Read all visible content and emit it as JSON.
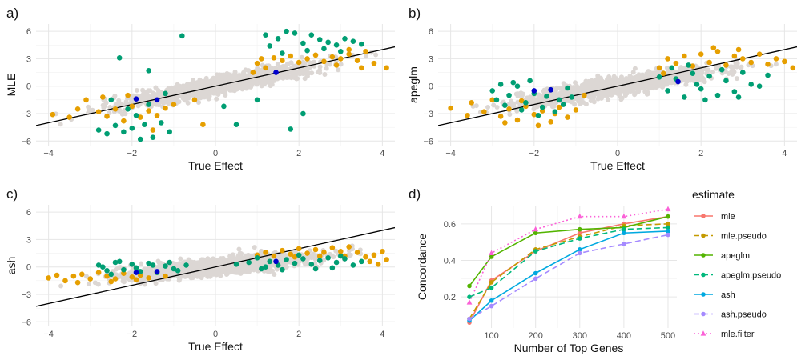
{
  "colors": {
    "background_points": "#dcd7d4",
    "orange": "#e69f00",
    "green": "#009e73",
    "blue": "#0000cc",
    "line": "#000000",
    "grid_major": "#e6e6e6",
    "grid_minor": "#f2f2f2"
  },
  "chart_data": [
    {
      "type": "scatter",
      "panel": "a)",
      "xlabel": "True Effect",
      "ylabel": "MLE",
      "xlim": [
        -4.3,
        4.3
      ],
      "ylim": [
        -6.5,
        6.8
      ],
      "xticks": [
        -4,
        -2,
        0,
        2,
        4
      ],
      "yticks": [
        -6,
        -3,
        0,
        3,
        6
      ],
      "grid": true,
      "line": {
        "intercept": 0,
        "slope": 1
      },
      "green_points": [
        [
          -2.8,
          -4.8
        ],
        [
          -2.6,
          -5.2
        ],
        [
          -2.4,
          -4.3
        ],
        [
          -2.2,
          -5.0
        ],
        [
          -2.0,
          -4.6
        ],
        [
          -1.8,
          -5.8
        ],
        [
          -1.7,
          -4.2
        ],
        [
          -1.5,
          -5.6
        ],
        [
          -1.3,
          -4.0
        ],
        [
          -1.1,
          -5.0
        ],
        [
          -2.5,
          -1.5
        ],
        [
          -2.1,
          -2.5
        ],
        [
          -1.9,
          -3.2
        ],
        [
          -1.6,
          -2.0
        ],
        [
          -2.3,
          3.1
        ],
        [
          -1.6,
          1.7
        ],
        [
          -1.2,
          -0.8
        ],
        [
          -0.8,
          5.5
        ],
        [
          0.2,
          -2.2
        ],
        [
          0.5,
          -4.2
        ],
        [
          1.0,
          -1.5
        ],
        [
          1.8,
          -4.7
        ],
        [
          2.1,
          -3.0
        ],
        [
          1.2,
          5.6
        ],
        [
          1.5,
          5.2
        ],
        [
          1.7,
          6.0
        ],
        [
          1.9,
          5.8
        ],
        [
          2.1,
          4.7
        ],
        [
          2.3,
          5.6
        ],
        [
          2.5,
          5.1
        ],
        [
          2.7,
          4.8
        ],
        [
          2.9,
          4.5
        ],
        [
          3.1,
          5.2
        ],
        [
          3.3,
          4.9
        ],
        [
          3.5,
          4.6
        ],
        [
          2.2,
          3.9
        ],
        [
          2.6,
          4.1
        ],
        [
          3.0,
          3.8
        ],
        [
          1.6,
          3.6
        ],
        [
          1.3,
          4.4
        ]
      ],
      "orange_points": [
        [
          -3.9,
          -3.1
        ],
        [
          -3.3,
          -2.5
        ],
        [
          -3.1,
          -1.5
        ],
        [
          -2.8,
          -2.8
        ],
        [
          -2.6,
          -3.3
        ],
        [
          -2.4,
          -2.5
        ],
        [
          -2.2,
          -3.8
        ],
        [
          -2.0,
          -2.2
        ],
        [
          -1.8,
          -3.4
        ],
        [
          -1.6,
          -2.7
        ],
        [
          -1.4,
          -3.2
        ],
        [
          -1.2,
          -2.4
        ],
        [
          -1.0,
          -2.0
        ],
        [
          -2.7,
          -1.2
        ],
        [
          -2.1,
          -1.0
        ],
        [
          -3.5,
          -3.4
        ],
        [
          -1.5,
          -4.8
        ],
        [
          -0.5,
          -1.5
        ],
        [
          -0.3,
          -4.2
        ],
        [
          1.0,
          2.5
        ],
        [
          1.2,
          2.0
        ],
        [
          1.4,
          3.1
        ],
        [
          1.6,
          2.8
        ],
        [
          1.8,
          3.3
        ],
        [
          2.0,
          2.6
        ],
        [
          2.2,
          3.0
        ],
        [
          2.4,
          3.4
        ],
        [
          2.6,
          2.7
        ],
        [
          2.8,
          3.2
        ],
        [
          3.0,
          3.0
        ],
        [
          3.2,
          3.5
        ],
        [
          3.4,
          2.8
        ],
        [
          3.6,
          3.8
        ],
        [
          1.1,
          3.0
        ],
        [
          2.9,
          2.3
        ],
        [
          3.5,
          2.0
        ],
        [
          3.8,
          2.5
        ],
        [
          4.1,
          2.0
        ],
        [
          3.2,
          4.0
        ],
        [
          0.9,
          1.5
        ]
      ],
      "blue_points": [
        [
          -1.9,
          -1.4
        ],
        [
          -1.4,
          -1.5
        ],
        [
          1.45,
          1.5
        ]
      ]
    },
    {
      "type": "scatter",
      "panel": "b)",
      "xlabel": "True Effect",
      "ylabel": "apeglm",
      "xlim": [
        -4.3,
        4.3
      ],
      "ylim": [
        -6.5,
        6.8
      ],
      "xticks": [
        -4,
        -2,
        0,
        2,
        4
      ],
      "yticks": [
        -6,
        -3,
        0,
        3,
        6
      ],
      "grid": true,
      "line": {
        "intercept": 0,
        "slope": 1
      },
      "green_points": [
        [
          -3.0,
          -0.5
        ],
        [
          -2.8,
          0.2
        ],
        [
          -2.6,
          -1.0
        ],
        [
          -2.4,
          0.0
        ],
        [
          -2.2,
          -1.8
        ],
        [
          -2.0,
          -0.8
        ],
        [
          -1.8,
          -2.3
        ],
        [
          -1.6,
          -0.4
        ],
        [
          -1.4,
          -1.5
        ],
        [
          -1.2,
          -0.2
        ],
        [
          -2.7,
          -2.1
        ],
        [
          -2.3,
          -2.6
        ],
        [
          -1.9,
          -3.2
        ],
        [
          -1.5,
          -2.8
        ],
        [
          -1.1,
          -1.2
        ],
        [
          -2.5,
          0.4
        ],
        [
          -2.1,
          0.6
        ],
        [
          -1.7,
          -1.1
        ],
        [
          -1.3,
          -2.0
        ],
        [
          -2.9,
          -1.5
        ],
        [
          1.0,
          1.0
        ],
        [
          1.2,
          -0.5
        ],
        [
          1.4,
          0.8
        ],
        [
          1.6,
          -1.2
        ],
        [
          1.8,
          1.4
        ],
        [
          2.0,
          -0.3
        ],
        [
          2.2,
          1.1
        ],
        [
          2.4,
          -1.0
        ],
        [
          2.6,
          0.6
        ],
        [
          2.8,
          -0.6
        ],
        [
          3.0,
          1.5
        ],
        [
          3.2,
          0.2
        ],
        [
          1.3,
          2.0
        ],
        [
          1.7,
          2.3
        ],
        [
          2.1,
          -1.5
        ],
        [
          2.5,
          1.8
        ],
        [
          2.9,
          -1.2
        ],
        [
          3.4,
          0.0
        ],
        [
          3.6,
          1.2
        ],
        [
          1.9,
          0.2
        ]
      ],
      "orange_points": [
        [
          -4.0,
          -2.4
        ],
        [
          -3.5,
          -1.8
        ],
        [
          -3.2,
          -2.8
        ],
        [
          -3.0,
          -1.5
        ],
        [
          -2.8,
          -3.3
        ],
        [
          -2.6,
          -2.5
        ],
        [
          -2.4,
          -3.7
        ],
        [
          -2.2,
          -2.2
        ],
        [
          -2.0,
          -3.1
        ],
        [
          -1.8,
          -2.7
        ],
        [
          -1.6,
          -3.9
        ],
        [
          -1.4,
          -2.3
        ],
        [
          -1.2,
          -3.4
        ],
        [
          -2.7,
          -4.0
        ],
        [
          -2.3,
          -1.6
        ],
        [
          -1.9,
          -4.3
        ],
        [
          -1.5,
          -3.0
        ],
        [
          -1.0,
          -2.6
        ],
        [
          -0.8,
          -1.0
        ],
        [
          -3.6,
          -3.2
        ],
        [
          1.0,
          2.0
        ],
        [
          1.2,
          3.0
        ],
        [
          1.4,
          2.5
        ],
        [
          1.6,
          3.3
        ],
        [
          1.8,
          2.2
        ],
        [
          2.0,
          3.5
        ],
        [
          2.2,
          2.6
        ],
        [
          2.4,
          3.8
        ],
        [
          2.6,
          2.3
        ],
        [
          2.8,
          3.3
        ],
        [
          3.0,
          3.0
        ],
        [
          3.2,
          2.6
        ],
        [
          3.4,
          3.5
        ],
        [
          3.6,
          2.4
        ],
        [
          1.1,
          1.4
        ],
        [
          2.3,
          4.2
        ],
        [
          2.9,
          4.0
        ],
        [
          3.8,
          3.0
        ],
        [
          4.2,
          2.0
        ],
        [
          4.0,
          2.7
        ]
      ],
      "blue_points": [
        [
          -1.6,
          -0.4
        ],
        [
          -2.0,
          -0.5
        ],
        [
          1.45,
          0.5
        ]
      ]
    },
    {
      "type": "scatter",
      "panel": "c)",
      "xlabel": "True Effect",
      "ylabel": "ash",
      "xlim": [
        -4.3,
        4.3
      ],
      "ylim": [
        -6.5,
        6.8
      ],
      "xticks": [
        -4,
        -2,
        0,
        2,
        4
      ],
      "yticks": [
        -6,
        -3,
        0,
        3,
        6
      ],
      "grid": true,
      "line": {
        "intercept": 0,
        "slope": 1
      },
      "green_points": [
        [
          -2.8,
          0.2
        ],
        [
          -2.6,
          -0.4
        ],
        [
          -2.4,
          0.5
        ],
        [
          -2.2,
          -0.3
        ],
        [
          -2.0,
          0.3
        ],
        [
          -1.8,
          -0.5
        ],
        [
          -1.6,
          0.4
        ],
        [
          -1.4,
          -0.6
        ],
        [
          -1.2,
          0.1
        ],
        [
          -1.0,
          -0.2
        ],
        [
          -2.7,
          0.0
        ],
        [
          -2.3,
          0.6
        ],
        [
          -1.9,
          -0.1
        ],
        [
          -1.5,
          0.2
        ],
        [
          -1.1,
          0.5
        ],
        [
          -0.9,
          -0.4
        ],
        [
          -0.7,
          0.2
        ],
        [
          0.8,
          0.5
        ],
        [
          1.1,
          -0.2
        ],
        [
          1.3,
          0.6
        ],
        [
          1.5,
          0.2
        ],
        [
          1.7,
          0.8
        ],
        [
          1.9,
          0.4
        ],
        [
          2.1,
          0.9
        ],
        [
          2.3,
          0.3
        ],
        [
          2.5,
          0.7
        ],
        [
          2.7,
          1.0
        ],
        [
          2.9,
          0.5
        ],
        [
          3.1,
          0.9
        ],
        [
          3.3,
          0.2
        ],
        [
          1.0,
          1.0
        ],
        [
          2.0,
          1.3
        ],
        [
          3.0,
          1.2
        ],
        [
          1.2,
          0.0
        ],
        [
          1.6,
          -0.3
        ],
        [
          2.4,
          -0.2
        ],
        [
          2.8,
          -0.1
        ],
        [
          3.5,
          0.6
        ],
        [
          0.5,
          0.3
        ],
        [
          -2.5,
          -0.8
        ]
      ],
      "orange_points": [
        [
          -4.0,
          -1.2
        ],
        [
          -3.6,
          -1.5
        ],
        [
          -3.4,
          -1.0
        ],
        [
          -3.2,
          -0.8
        ],
        [
          -3.0,
          -1.3
        ],
        [
          -2.8,
          -0.6
        ],
        [
          -2.6,
          -1.0
        ],
        [
          -2.4,
          -1.3
        ],
        [
          -2.2,
          -0.7
        ],
        [
          -2.0,
          -1.1
        ],
        [
          -1.8,
          -0.9
        ],
        [
          -1.6,
          -1.2
        ],
        [
          -1.4,
          -0.6
        ],
        [
          -1.2,
          -1.0
        ],
        [
          -3.8,
          -0.9
        ],
        [
          -3.3,
          -1.7
        ],
        [
          -2.5,
          -1.6
        ],
        [
          -1.9,
          -1.4
        ],
        [
          1.0,
          1.3
        ],
        [
          1.2,
          1.6
        ],
        [
          1.4,
          1.2
        ],
        [
          1.6,
          1.8
        ],
        [
          1.8,
          1.4
        ],
        [
          2.0,
          2.0
        ],
        [
          2.2,
          1.5
        ],
        [
          2.4,
          1.9
        ],
        [
          2.6,
          1.6
        ],
        [
          2.8,
          2.1
        ],
        [
          3.0,
          1.7
        ],
        [
          3.2,
          2.2
        ],
        [
          3.4,
          1.6
        ],
        [
          3.6,
          1.1
        ],
        [
          3.8,
          1.3
        ],
        [
          4.1,
          0.8
        ],
        [
          3.9,
          0.3
        ],
        [
          2.5,
          1.2
        ],
        [
          1.9,
          1.1
        ],
        [
          3.1,
          1.2
        ],
        [
          4.0,
          1.7
        ],
        [
          3.7,
          0.6
        ]
      ],
      "blue_points": [
        [
          -1.9,
          -0.6
        ],
        [
          -1.4,
          -0.5
        ],
        [
          1.45,
          0.6
        ]
      ]
    },
    {
      "type": "line",
      "panel": "d)",
      "xlabel": "Number of Top Genes",
      "ylabel": "Concordance",
      "xlim": [
        30,
        520
      ],
      "ylim": [
        0.03,
        0.7
      ],
      "xticks": [
        100,
        200,
        300,
        400,
        500
      ],
      "yticks": [
        0.2,
        0.4,
        0.6
      ],
      "grid": true,
      "legend": {
        "title": "estimate",
        "position": "right"
      },
      "x": [
        50,
        100,
        200,
        300,
        400,
        500
      ],
      "series": [
        {
          "name": "mle",
          "values": [
            0.06,
            0.29,
            0.45,
            0.55,
            0.6,
            0.64
          ],
          "color": "#f8766d",
          "dash": "",
          "marker": "circle"
        },
        {
          "name": "mle.pseudo",
          "values": [
            0.08,
            0.28,
            0.46,
            0.53,
            0.59,
            0.6
          ],
          "color": "#c49a00",
          "dash": "7,4",
          "marker": "circle"
        },
        {
          "name": "apeglm",
          "values": [
            0.26,
            0.42,
            0.55,
            0.57,
            0.58,
            0.64
          ],
          "color": "#53b400",
          "dash": "",
          "marker": "circle"
        },
        {
          "name": "apeglm.pseudo",
          "values": [
            0.2,
            0.25,
            0.45,
            0.52,
            0.57,
            0.58
          ],
          "color": "#00b87c",
          "dash": "7,4",
          "marker": "circle"
        },
        {
          "name": "ash",
          "values": [
            0.07,
            0.18,
            0.33,
            0.46,
            0.55,
            0.56
          ],
          "color": "#00a9e0",
          "dash": "",
          "marker": "circle"
        },
        {
          "name": "ash.pseudo",
          "values": [
            0.08,
            0.15,
            0.3,
            0.44,
            0.49,
            0.54
          ],
          "color": "#a58aff",
          "dash": "7,4",
          "marker": "circle"
        },
        {
          "name": "mle.filter",
          "values": [
            0.17,
            0.44,
            0.57,
            0.64,
            0.64,
            0.68
          ],
          "color": "#fb61d7",
          "dash": "2,3",
          "marker": "triangle"
        }
      ]
    }
  ]
}
